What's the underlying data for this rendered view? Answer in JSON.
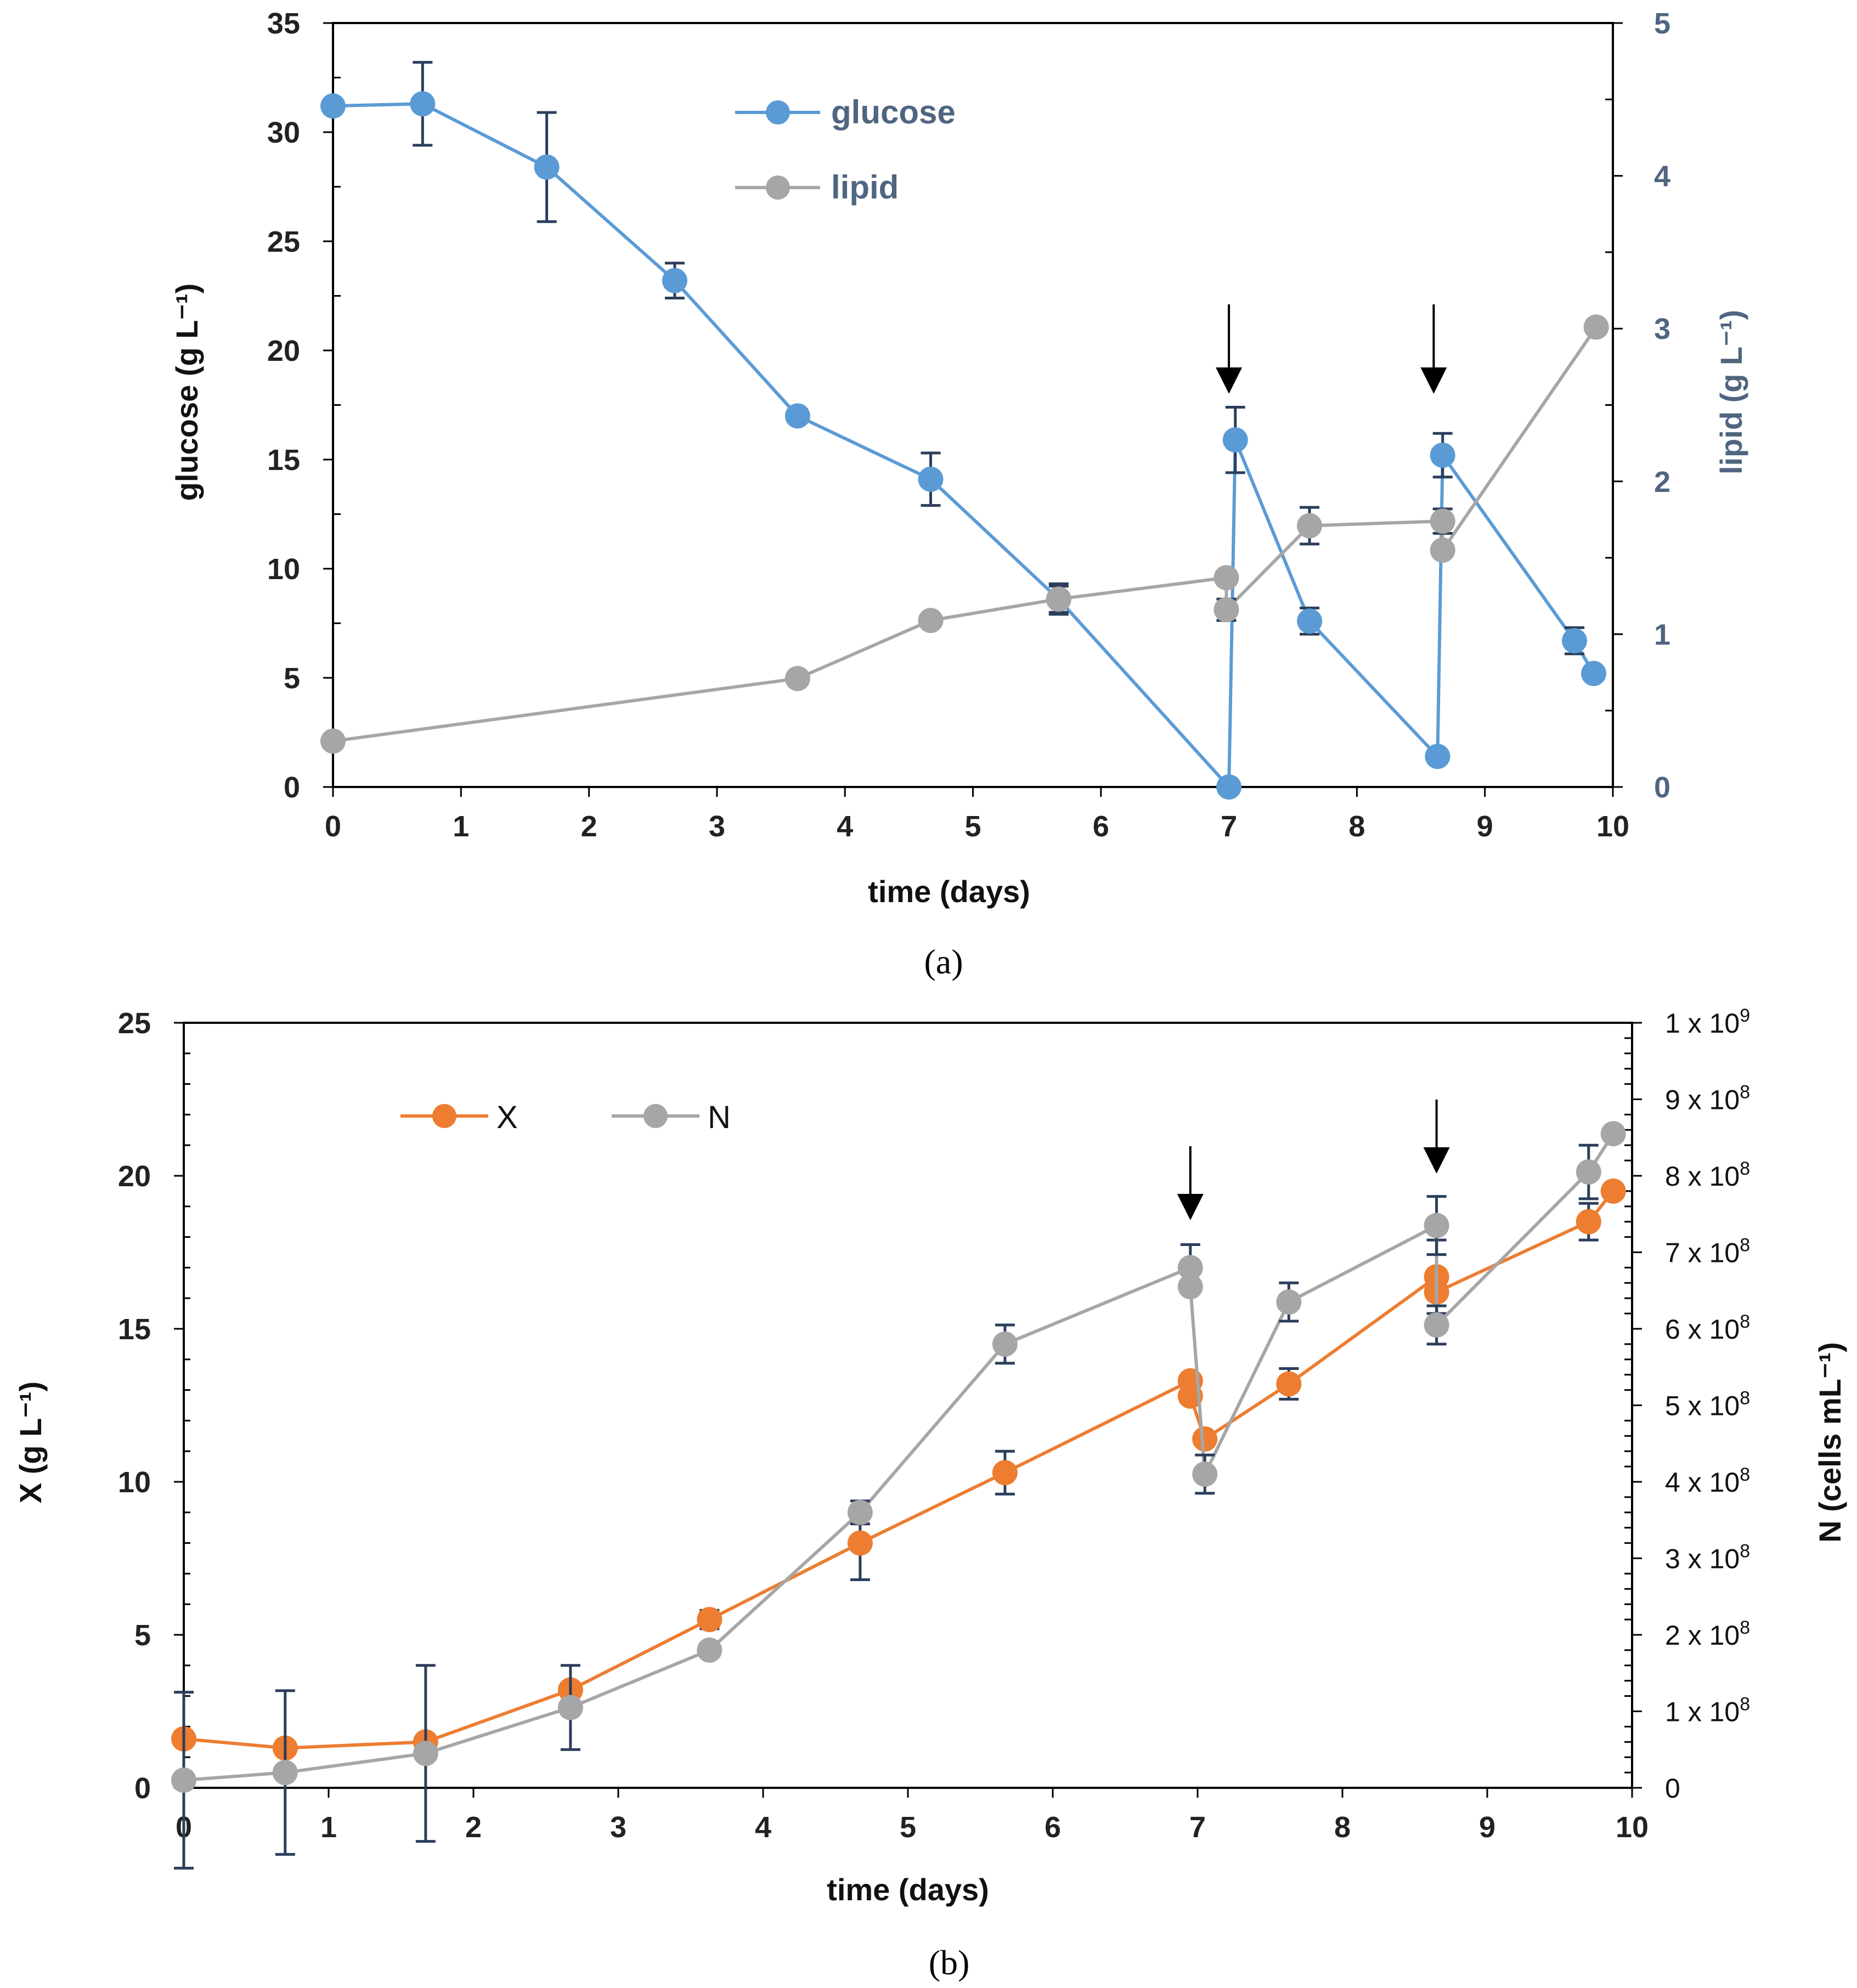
{
  "colors": {
    "glucose": "#5b9bd5",
    "lipid": "#a6a6a6",
    "X": "#ed7d31",
    "N": "#a6a6a6",
    "errorbar": "#2c3e5c",
    "right_axis_text": "#4f6580"
  },
  "chart_data": [
    {
      "type": "line",
      "panel": "(a)",
      "xlabel": "time (days)",
      "ylabel": "glucose (g L⁻¹)",
      "y2label": "lipid (g L⁻¹)",
      "xlim": [
        0,
        10
      ],
      "ylim": [
        0,
        35
      ],
      "y2lim": [
        0,
        5
      ],
      "xticks": [
        "0",
        "1",
        "2",
        "3",
        "4",
        "5",
        "6",
        "7",
        "8",
        "9",
        "10"
      ],
      "yticks": [
        "0",
        "5",
        "10",
        "15",
        "20",
        "25",
        "30",
        "35"
      ],
      "y2ticks": [
        "0",
        "1",
        "2",
        "3",
        "4",
        "5"
      ],
      "legend": [
        "glucose",
        "lipid"
      ],
      "arrows_at_x": [
        7.0,
        8.6
      ],
      "series": [
        {
          "name": "glucose",
          "axis": "left",
          "x": [
            0,
            0.7,
            1.67,
            2.67,
            3.63,
            4.67,
            5.67,
            7.0,
            7.05,
            7.63,
            8.63,
            8.67,
            9.7,
            9.85
          ],
          "y": [
            31.2,
            31.3,
            28.4,
            23.2,
            17.0,
            14.1,
            8.6,
            0.0,
            15.9,
            7.6,
            1.4,
            15.2,
            6.7,
            5.2
          ],
          "err": [
            0,
            1.9,
            2.5,
            0.8,
            0.3,
            1.2,
            0.6,
            0,
            1.5,
            0.6,
            0,
            1.0,
            0.6,
            0
          ]
        },
        {
          "name": "lipid",
          "axis": "right",
          "x": [
            0,
            3.63,
            4.67,
            5.67,
            6.98,
            6.98,
            7.63,
            8.67,
            8.67,
            9.87
          ],
          "y": [
            0.3,
            0.71,
            1.09,
            1.23,
            1.37,
            1.16,
            1.71,
            1.74,
            1.55,
            3.01
          ],
          "err": [
            0,
            0.03,
            0.03,
            0.1,
            0,
            0.07,
            0.12,
            0.08,
            0,
            0
          ]
        }
      ]
    },
    {
      "type": "line",
      "panel": "(b)",
      "xlabel": "time (days)",
      "ylabel": "X (g L⁻¹)",
      "y2label": "N (cells mL⁻¹)",
      "xlim": [
        0,
        10
      ],
      "ylim": [
        0,
        25
      ],
      "y2lim": [
        0,
        1000000000
      ],
      "xticks": [
        "0",
        "1",
        "2",
        "3",
        "4",
        "5",
        "6",
        "7",
        "8",
        "9",
        "10"
      ],
      "yticks": [
        "0",
        "5",
        "10",
        "15",
        "20",
        "25"
      ],
      "y2ticks": [
        {
          "base": "0",
          "exp": ""
        },
        {
          "base": "1 x 10",
          "exp": "8"
        },
        {
          "base": "2 x 10",
          "exp": "8"
        },
        {
          "base": "3 x 10",
          "exp": "8"
        },
        {
          "base": "4 x 10",
          "exp": "8"
        },
        {
          "base": "5 x 10",
          "exp": "8"
        },
        {
          "base": "6 x 10",
          "exp": "8"
        },
        {
          "base": "7 x 10",
          "exp": "8"
        },
        {
          "base": "8 x 10",
          "exp": "8"
        },
        {
          "base": "9 x 10",
          "exp": "8"
        },
        {
          "base": "1 x 10",
          "exp": "9"
        }
      ],
      "legend": [
        "X",
        "N"
      ],
      "arrows_at_x": [
        6.95,
        8.65
      ],
      "series": [
        {
          "name": "X",
          "axis": "left",
          "x": [
            0,
            0.7,
            1.67,
            2.67,
            3.63,
            4.67,
            5.67,
            6.95,
            6.95,
            7.05,
            7.63,
            8.65,
            8.65,
            9.7,
            9.87
          ],
          "y": [
            1.6,
            1.3,
            1.5,
            3.2,
            5.5,
            8.0,
            10.3,
            13.3,
            12.8,
            11.4,
            13.2,
            16.7,
            16.2,
            18.5,
            19.5
          ],
          "err": [
            0,
            0,
            0,
            0,
            0.3,
            1.2,
            0.7,
            0,
            0,
            0,
            0.5,
            1.2,
            0,
            0.6,
            0
          ]
        },
        {
          "name": "N",
          "axis": "right",
          "x": [
            0,
            0.7,
            1.67,
            2.67,
            3.63,
            4.67,
            5.67,
            6.95,
            6.95,
            7.05,
            7.63,
            8.65,
            8.65,
            9.7,
            9.87
          ],
          "y": [
            10000000,
            20000000,
            45000000,
            105000000,
            180000000,
            360000000,
            580000000,
            680000000,
            655000000,
            410000000,
            635000000,
            735000000,
            605000000,
            805000000,
            855000000
          ],
          "err": [
            115000000,
            107000000,
            115000000,
            55000000,
            0,
            15000000,
            25000000,
            30000000,
            0,
            25000000,
            25000000,
            38000000,
            25000000,
            35000000,
            0
          ]
        }
      ]
    }
  ]
}
